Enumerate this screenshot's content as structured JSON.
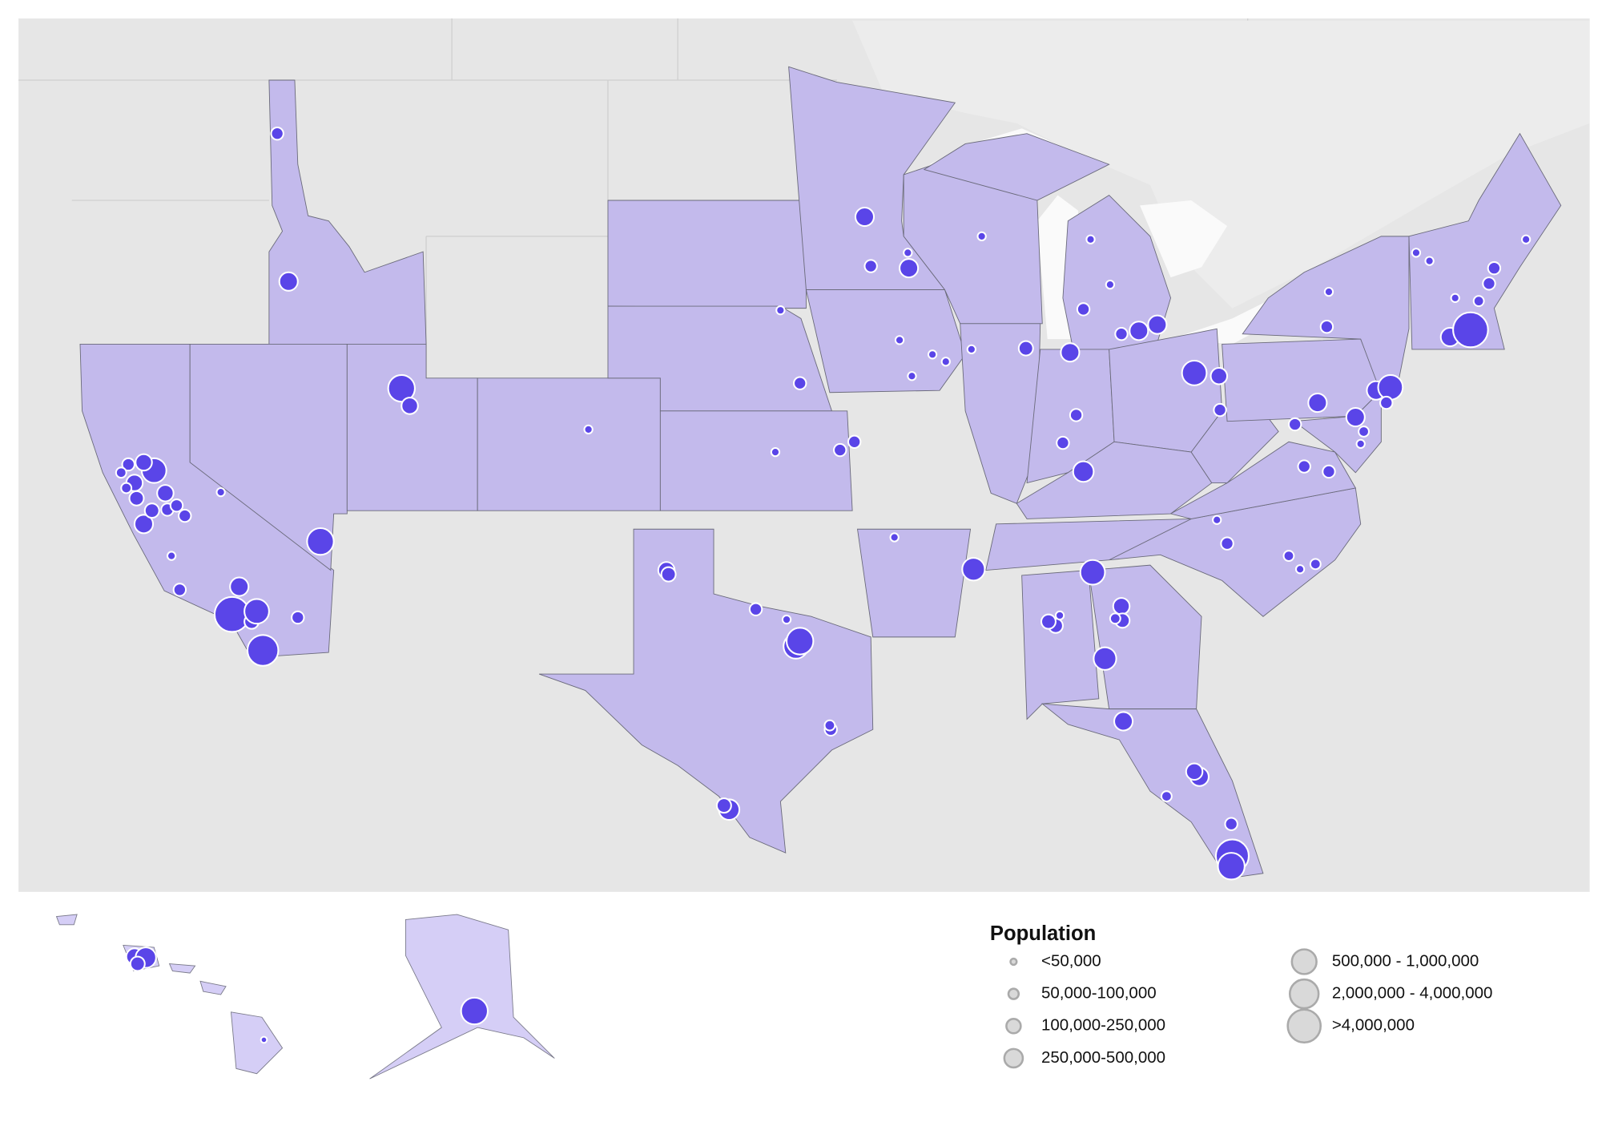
{
  "legend": {
    "title": "Population",
    "items": [
      {
        "label": "<50,000",
        "column": 0
      },
      {
        "label": "50,000-100,000",
        "column": 0
      },
      {
        "label": "100,000-250,000",
        "column": 0
      },
      {
        "label": "250,000-500,000",
        "column": 0
      },
      {
        "label": "500,000 - 1,000,000",
        "column": 1
      },
      {
        "label": "2,000,000 - 4,000,000",
        "column": 1
      },
      {
        "label": ">4,000,000",
        "column": 1
      }
    ]
  }
}
